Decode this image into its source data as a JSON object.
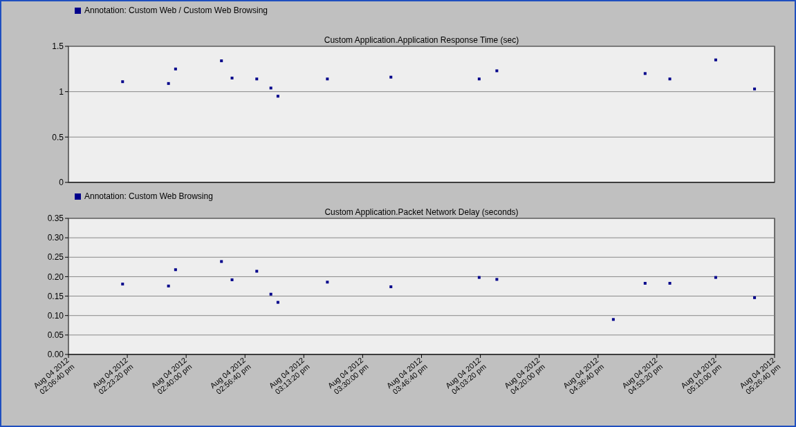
{
  "chart_data": [
    {
      "type": "scatter",
      "title": "Custom Application.Application Response Time (sec)",
      "marker": "square",
      "grid": "y",
      "legend": "top left",
      "tick_labels": "y",
      "xlim": [
        "2012-08-04T14:06:40",
        "2012-08-04T17:26:40"
      ],
      "ylim": [
        0,
        1.5
      ],
      "yticks": [
        0,
        0.5,
        1,
        1.5
      ],
      "series": [
        {
          "name": "Annotation: Custom Web / Custom Web Browsing",
          "color": "#00008b",
          "x": [
            "2012-08-04T14:22",
            "2012-08-04T14:35",
            "2012-08-04T14:37",
            "2012-08-04T14:50",
            "2012-08-04T14:53",
            "2012-08-04T15:00",
            "2012-08-04T15:04",
            "2012-08-04T15:06",
            "2012-08-04T15:20",
            "2012-08-04T15:38",
            "2012-08-04T16:03",
            "2012-08-04T16:08",
            "2012-08-04T16:50",
            "2012-08-04T16:57",
            "2012-08-04T17:10",
            "2012-08-04T17:21"
          ],
          "values": [
            1.11,
            1.09,
            1.25,
            1.34,
            1.15,
            1.14,
            1.04,
            0.95,
            1.14,
            1.16,
            1.14,
            1.23,
            1.2,
            1.14,
            1.35,
            1.03
          ]
        }
      ]
    },
    {
      "type": "scatter",
      "title": "Custom Application.Packet Network Delay (seconds)",
      "marker": "square",
      "grid": "y",
      "legend": "top left",
      "xlim": [
        "2012-08-04T14:06:40",
        "2012-08-04T17:26:40"
      ],
      "xticks": [
        {
          "value": "2012-08-04T14:06:40",
          "label": "Aug 04 2012 02:06:40 pm"
        },
        {
          "value": "2012-08-04T14:23:20",
          "label": "Aug 04 2012 02:23:20 pm"
        },
        {
          "value": "2012-08-04T14:40",
          "label": "Aug 04 2012 02:40:00 pm"
        },
        {
          "value": "2012-08-04T14:56:40",
          "label": "Aug 04 2012 02:56:40 pm"
        },
        {
          "value": "2012-08-04T15:13:20",
          "label": "Aug 04 2012 03:13:20 pm"
        },
        {
          "value": "2012-08-04T15:30",
          "label": "Aug 04 2012 03:30:00 pm"
        },
        {
          "value": "2012-08-04T15:46:40",
          "label": "Aug 04 2012 03:46:40 pm"
        },
        {
          "value": "2012-08-04T16:03:20",
          "label": "Aug 04 2012 04:03:20 pm"
        },
        {
          "value": "2012-08-04T16:20",
          "label": "Aug 04 2012 04:20:00 pm"
        },
        {
          "value": "2012-08-04T16:36:40",
          "label": "Aug 04 2012 04:36:40 pm"
        },
        {
          "value": "2012-08-04T16:53:20",
          "label": "Aug 04 2012 04:53:20 pm"
        },
        {
          "value": "2012-08-04T17:10",
          "label": "Aug 04 2012 05:10:00 pm"
        },
        {
          "value": "2012-08-04T17:26:40",
          "label": "Aug 04 2012 05:26:40 pm"
        }
      ],
      "ylim": [
        0,
        0.35
      ],
      "yticks": [
        {
          "value": 0,
          "label": "0.00"
        },
        {
          "value": 0.05,
          "label": "0.05"
        },
        {
          "value": 0.1,
          "label": "0.10"
        },
        {
          "value": 0.15,
          "label": "0.15"
        },
        {
          "value": 0.2,
          "label": "0.20"
        },
        {
          "value": 0.25,
          "label": "0.25"
        },
        {
          "value": 0.3,
          "label": "0.30"
        },
        {
          "value": 0.35,
          "label": "0.35"
        }
      ],
      "series": [
        {
          "name": "Annotation: Custom Web Browsing",
          "color": "#00008b",
          "x": [
            "2012-08-04T14:22",
            "2012-08-04T14:35",
            "2012-08-04T14:37",
            "2012-08-04T14:50",
            "2012-08-04T14:53",
            "2012-08-04T15:00",
            "2012-08-04T15:04",
            "2012-08-04T15:06",
            "2012-08-04T15:20",
            "2012-08-04T15:38",
            "2012-08-04T16:03",
            "2012-08-04T16:08",
            "2012-08-04T16:41",
            "2012-08-04T16:50",
            "2012-08-04T16:57",
            "2012-08-04T17:10",
            "2012-08-04T17:21"
          ],
          "values": [
            0.181,
            0.176,
            0.218,
            0.239,
            0.192,
            0.214,
            0.155,
            0.134,
            0.186,
            0.174,
            0.198,
            0.193,
            0.09,
            0.183,
            0.183,
            0.198,
            0.146
          ]
        }
      ]
    }
  ]
}
